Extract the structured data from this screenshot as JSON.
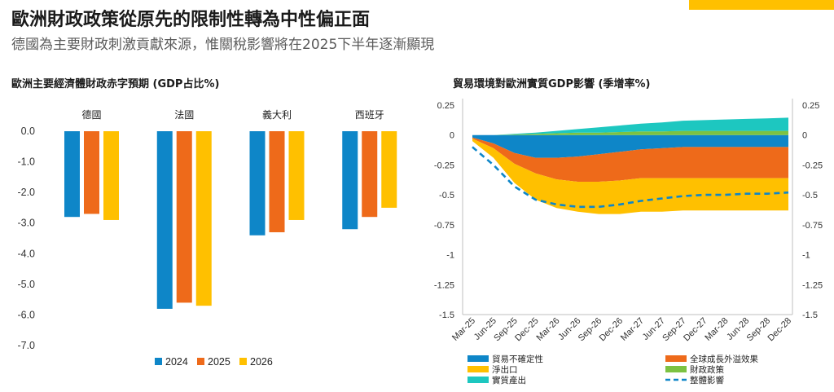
{
  "header": {
    "title": "歐洲財政政策從原先的限制性轉為中性偏正面",
    "subtitle": "德國為主要財政刺激貢獻來源，惟關稅影響將在2025下半年逐漸顯現",
    "accent_color": "#ffc000"
  },
  "chart_data": [
    {
      "type": "bar",
      "title": "歐洲主要經濟體財政赤字預期 (GDP占比%)",
      "categories": [
        "德國",
        "法國",
        "義大利",
        "西班牙"
      ],
      "series": [
        {
          "name": "2024",
          "color": "#0e86c8",
          "values": [
            -2.8,
            -5.8,
            -3.4,
            -3.2
          ]
        },
        {
          "name": "2025",
          "color": "#ee6a1a",
          "values": [
            -2.7,
            -5.6,
            -3.3,
            -2.8
          ]
        },
        {
          "name": "2026",
          "color": "#ffc000",
          "values": [
            -2.9,
            -5.7,
            -2.9,
            -2.5
          ]
        }
      ],
      "ylim": [
        -7.0,
        0.0
      ],
      "yticks": [
        "0.0",
        "-1.0",
        "-2.0",
        "-3.0",
        "-4.0",
        "-5.0",
        "-6.0",
        "-7.0"
      ],
      "legend_position": "bottom"
    },
    {
      "type": "area",
      "title": "貿易環境對歐洲實質GDP影響 (季增率%)",
      "x": [
        "Mar-25",
        "Jun-25",
        "Sep-25",
        "Dec-25",
        "Mar-26",
        "Jun-26",
        "Sep-26",
        "Dec-26",
        "Mar-27",
        "Jun-27",
        "Sep-27",
        "Dec-27",
        "Mar-28",
        "Jun-28",
        "Sep-28",
        "Dec-28"
      ],
      "stacked_negative": [
        {
          "name": "貿易不確定性",
          "color": "#0e86c8",
          "values": [
            -0.02,
            -0.07,
            -0.15,
            -0.19,
            -0.19,
            -0.18,
            -0.16,
            -0.14,
            -0.12,
            -0.11,
            -0.1,
            -0.1,
            -0.1,
            -0.1,
            -0.1,
            -0.1
          ]
        },
        {
          "name": "全球成長外溢效果",
          "color": "#ee6a1a",
          "values": [
            -0.01,
            -0.04,
            -0.09,
            -0.13,
            -0.18,
            -0.21,
            -0.23,
            -0.24,
            -0.24,
            -0.25,
            -0.26,
            -0.26,
            -0.26,
            -0.26,
            -0.26,
            -0.26
          ]
        },
        {
          "name": "淨出口",
          "color": "#ffc000",
          "values": [
            -0.02,
            -0.08,
            -0.16,
            -0.22,
            -0.24,
            -0.25,
            -0.27,
            -0.28,
            -0.28,
            -0.28,
            -0.27,
            -0.27,
            -0.27,
            -0.27,
            -0.27,
            -0.27
          ]
        }
      ],
      "stacked_positive": [
        {
          "name": "財政政策",
          "color": "#7cc242",
          "values": [
            0.0,
            0.0,
            0.005,
            0.01,
            0.015,
            0.02,
            0.02,
            0.025,
            0.03,
            0.03,
            0.035,
            0.035,
            0.035,
            0.035,
            0.035,
            0.035
          ]
        },
        {
          "name": "實質產出",
          "color": "#1dc7c0",
          "values": [
            0.0,
            0.0,
            0.005,
            0.01,
            0.02,
            0.03,
            0.045,
            0.055,
            0.065,
            0.075,
            0.085,
            0.09,
            0.095,
            0.1,
            0.105,
            0.11
          ]
        }
      ],
      "line": {
        "name": "整體影響",
        "color": "#0e86c8",
        "style": "dashed",
        "values": [
          -0.1,
          -0.25,
          -0.43,
          -0.54,
          -0.58,
          -0.6,
          -0.6,
          -0.58,
          -0.55,
          -0.53,
          -0.51,
          -0.5,
          -0.5,
          -0.49,
          -0.49,
          -0.48
        ]
      },
      "ylim": [
        -1.5,
        0.25
      ],
      "yticks": [
        "0.25",
        "0",
        "-0.25",
        "-0.5",
        "-0.75",
        "-1",
        "-1.25",
        "-1.5"
      ],
      "dual_axis": true,
      "legend_position": "bottom"
    }
  ]
}
